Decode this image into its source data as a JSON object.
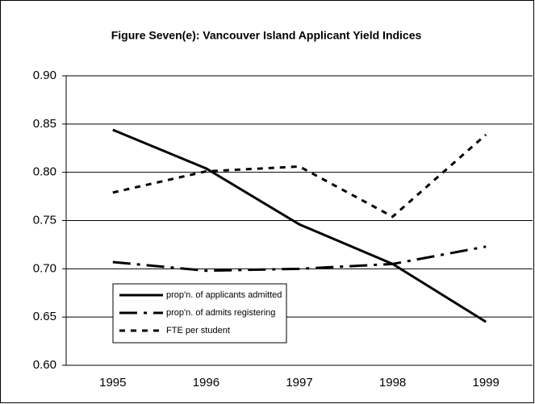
{
  "chart_data": {
    "type": "line",
    "title": "Figure Seven(e): Vancouver Island Applicant Yield Indices",
    "categories": [
      "1995",
      "1996",
      "1997",
      "1998",
      "1999"
    ],
    "series": [
      {
        "name": "prop'n. of applicants admitted",
        "color": "#000000",
        "linestyle": "solid",
        "values": [
          0.844,
          0.804,
          0.746,
          0.705,
          0.645
        ]
      },
      {
        "name": "prop'n. of admits registering",
        "color": "#000000",
        "linestyle": "dashdot",
        "values": [
          0.707,
          0.698,
          0.7,
          0.705,
          0.723
        ]
      },
      {
        "name": "FTE per student",
        "color": "#000000",
        "linestyle": "dashed",
        "values": [
          0.779,
          0.801,
          0.806,
          0.754,
          0.839
        ]
      }
    ],
    "ylim": [
      0.6,
      0.9
    ],
    "yticks": [
      {
        "value": 0.6,
        "label": "0.60"
      },
      {
        "value": 0.65,
        "label": "0.65"
      },
      {
        "value": 0.7,
        "label": "0.70"
      },
      {
        "value": 0.75,
        "label": "0.75"
      },
      {
        "value": 0.8,
        "label": "0.80"
      },
      {
        "value": 0.85,
        "label": "0.85"
      },
      {
        "value": 0.9,
        "label": "0.90"
      }
    ],
    "grid": true
  }
}
